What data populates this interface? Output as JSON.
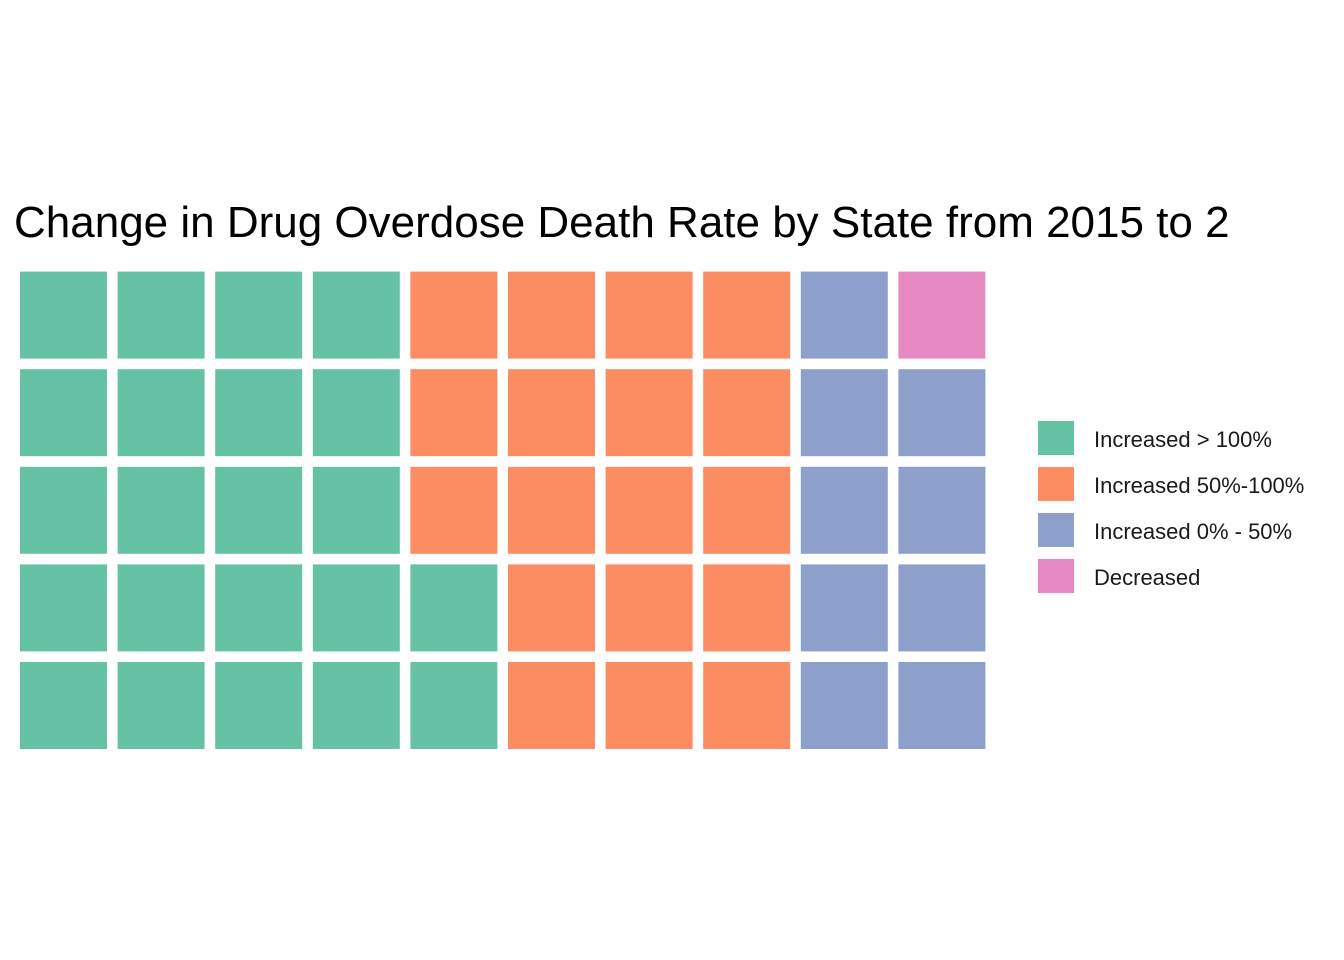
{
  "chart_data": {
    "type": "waffle",
    "title": "Change in Drug Overdose Death Rate by State from 2015 to 2",
    "units": 1,
    "grid": false,
    "legend_position": "right",
    "series": [
      {
        "name": "Increased > 100%",
        "value": 22,
        "color": "#66c2a5"
      },
      {
        "name": "Increased 50%-100%",
        "value": 18,
        "color": "#fc8d62"
      },
      {
        "name": "Increased 0% - 50%",
        "value": 9,
        "color": "#8da0cb"
      },
      {
        "name": "Decreased",
        "value": 1,
        "color": "#e78ac3"
      }
    ]
  }
}
